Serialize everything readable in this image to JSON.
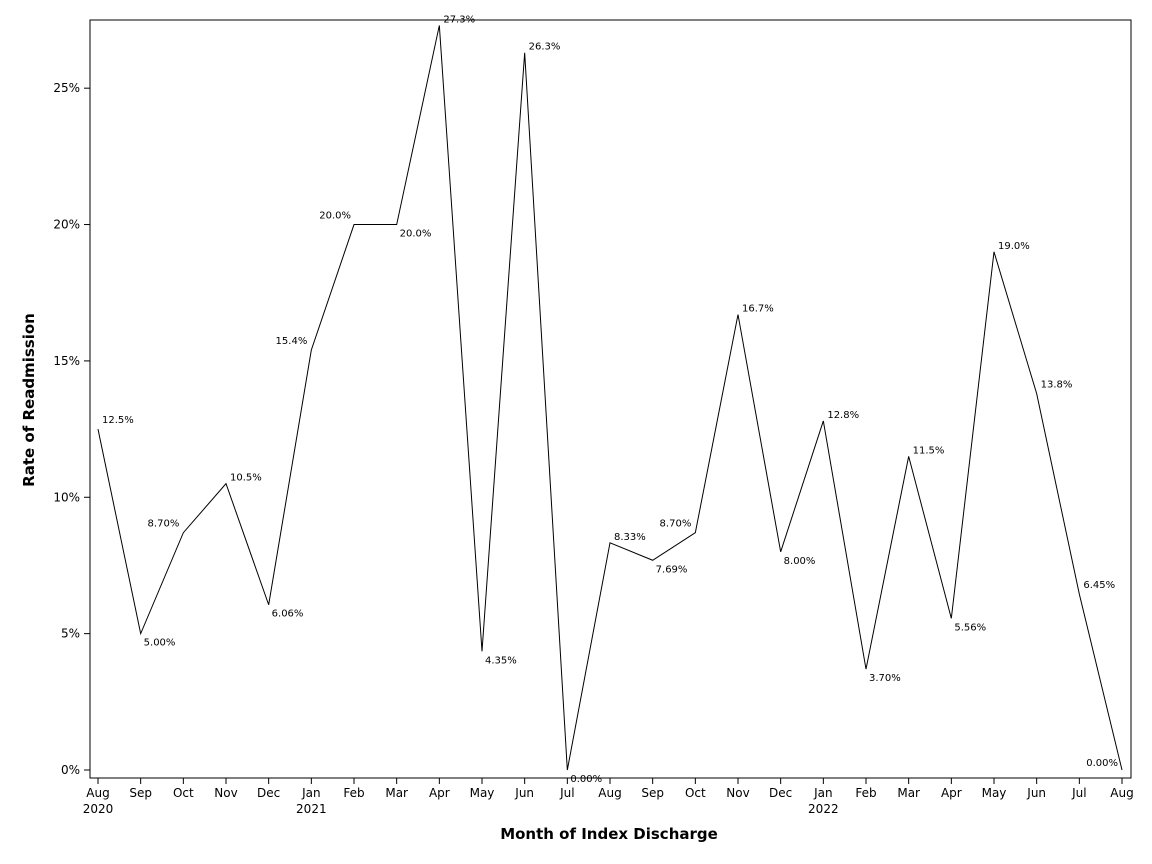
{
  "chart_data": {
    "type": "line",
    "xlabel": "Month of Index Discharge",
    "ylabel": "Rate of Readmission",
    "ylim": [
      0,
      0.275
    ],
    "yticks": [
      0,
      0.05,
      0.1,
      0.15,
      0.2,
      0.25
    ],
    "ytick_labels": [
      "0%",
      "5%",
      "10%",
      "15%",
      "20%",
      "25%"
    ],
    "grid": false,
    "legend": "none",
    "line_color": "#000000",
    "x": [
      "2020-08",
      "2020-09",
      "2020-10",
      "2020-11",
      "2020-12",
      "2021-01",
      "2021-02",
      "2021-03",
      "2021-04",
      "2021-05",
      "2021-06",
      "2021-07",
      "2021-08",
      "2021-09",
      "2021-10",
      "2021-11",
      "2021-12",
      "2022-01",
      "2022-02",
      "2022-03",
      "2022-04",
      "2022-05",
      "2022-06",
      "2022-07",
      "2022-08"
    ],
    "xtick_labels": [
      "Aug",
      "Sep",
      "Oct",
      "Nov",
      "Dec",
      "Jan",
      "Feb",
      "Mar",
      "Apr",
      "May",
      "Jun",
      "Jul",
      "Aug",
      "Sep",
      "Oct",
      "Nov",
      "Dec",
      "Jan",
      "Feb",
      "Mar",
      "Apr",
      "May",
      "Jun",
      "Jul",
      "Aug"
    ],
    "xtick_years": [
      "2020",
      "",
      "",
      "",
      "",
      "2021",
      "",
      "",
      "",
      "",
      "",
      "",
      "",
      "",
      "",
      "",
      "",
      "2022",
      "",
      "",
      "",
      "",
      "",
      "",
      ""
    ],
    "values": [
      0.125,
      0.05,
      0.087,
      0.105,
      0.0606,
      0.154,
      0.2,
      0.2,
      0.273,
      0.0435,
      0.263,
      0.0,
      0.0833,
      0.0769,
      0.087,
      0.167,
      0.08,
      0.128,
      0.037,
      0.115,
      0.0556,
      0.19,
      0.138,
      0.0645,
      0.0
    ],
    "data_labels": [
      "12.5%",
      "5.00%",
      "8.70%",
      "10.5%",
      "6.06%",
      "15.4%",
      "20.0%",
      "20.0%",
      "27.3%",
      "4.35%",
      "26.3%",
      "0.00%",
      "8.33%",
      "7.69%",
      "8.70%",
      "16.7%",
      "8.00%",
      "12.8%",
      "3.70%",
      "11.5%",
      "5.56%",
      "19.0%",
      "13.8%",
      "6.45%",
      "0.00%"
    ]
  }
}
